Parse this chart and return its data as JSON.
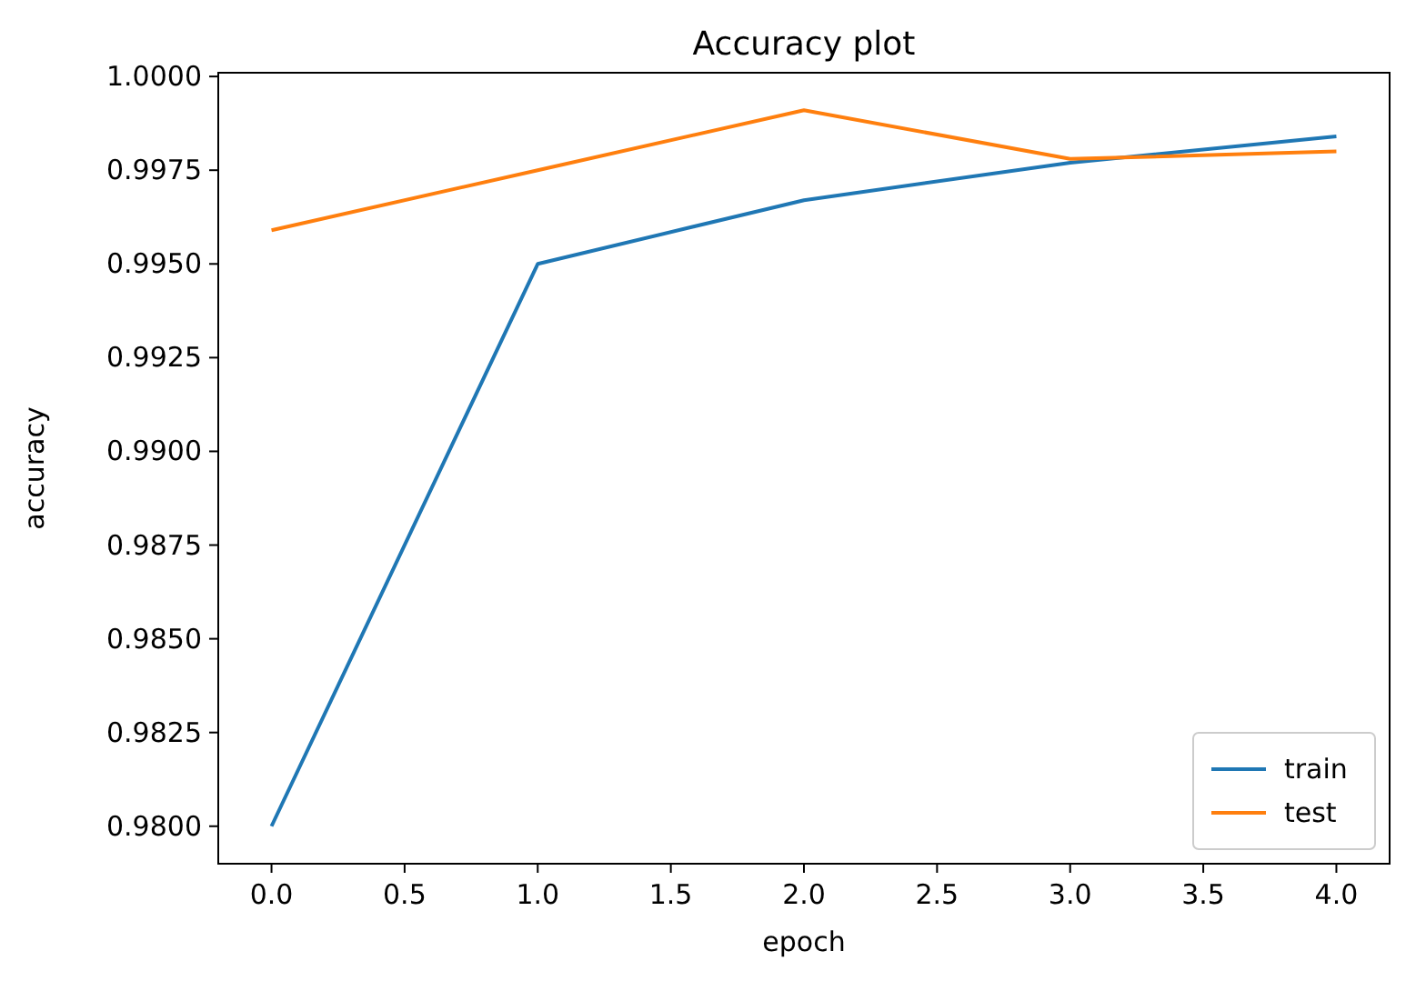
{
  "chart_data": {
    "type": "line",
    "title": "Accuracy plot",
    "xlabel": "epoch",
    "ylabel": "accuracy",
    "x": [
      0,
      1,
      2,
      3,
      4
    ],
    "series": [
      {
        "name": "train",
        "color": "#1f77b4",
        "values": [
          0.98,
          0.995,
          0.9967,
          0.9977,
          0.9984
        ]
      },
      {
        "name": "test",
        "color": "#ff7f0e",
        "values": [
          0.9959,
          0.9975,
          0.9991,
          0.9978,
          0.998
        ]
      }
    ],
    "xlim": [
      -0.2,
      4.2
    ],
    "ylim": [
      0.979,
      1.0001
    ],
    "xticks": [
      {
        "value": 0,
        "label": "0.0"
      },
      {
        "value": 0.5,
        "label": "0.5"
      },
      {
        "value": 1,
        "label": "1.0"
      },
      {
        "value": 1.5,
        "label": "1.5"
      },
      {
        "value": 2,
        "label": "2.0"
      },
      {
        "value": 2.5,
        "label": "2.5"
      },
      {
        "value": 3,
        "label": "3.0"
      },
      {
        "value": 3.5,
        "label": "3.5"
      },
      {
        "value": 4,
        "label": "4.0"
      }
    ],
    "yticks": [
      {
        "value": 0.98,
        "label": "0.9800"
      },
      {
        "value": 0.9825,
        "label": "0.9825"
      },
      {
        "value": 0.985,
        "label": "0.9850"
      },
      {
        "value": 0.9875,
        "label": "0.9875"
      },
      {
        "value": 0.99,
        "label": "0.9900"
      },
      {
        "value": 0.9925,
        "label": "0.9925"
      },
      {
        "value": 0.995,
        "label": "0.9950"
      },
      {
        "value": 0.9975,
        "label": "0.9975"
      },
      {
        "value": 1,
        "label": "1.0000"
      }
    ],
    "grid": false,
    "legend": "bottom right"
  }
}
